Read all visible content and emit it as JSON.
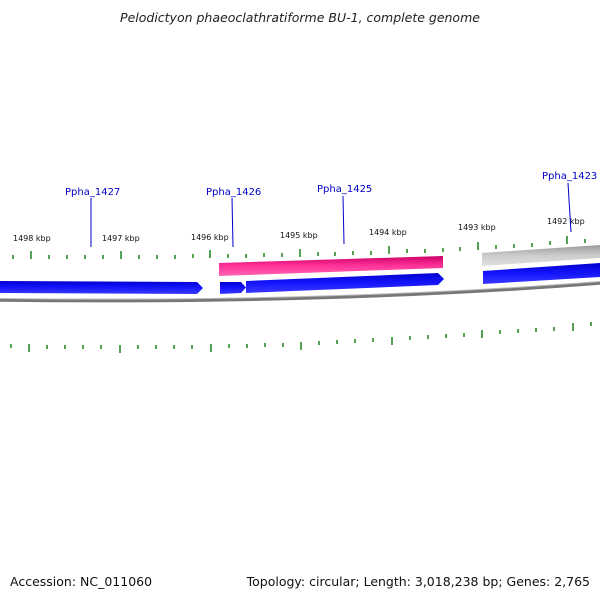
{
  "title": "Pelodictyon phaeoclathratiforme BU-1, complete genome",
  "footer": {
    "accession": "Accession: NC_011060",
    "topology": "Topology: circular; Length: 3,018,238 bp; Genes: 2,765"
  },
  "scale_labels": [
    "1498 kbp",
    "1497 kbp",
    "1496 kbp",
    "1495 kbp",
    "1494 kbp",
    "1493 kbp",
    "1492 kbp"
  ],
  "gene_labels": [
    "Ppha_1427",
    "Ppha_1426",
    "Ppha_1425",
    "Ppha_1423"
  ],
  "colors": {
    "forward_gene": "#ff3399",
    "reverse_gene": "#0000ee",
    "other_gene": "#c8c8c8",
    "backbone": "#888888",
    "ticks": "#2a8a2a",
    "label": "#0000cc"
  }
}
